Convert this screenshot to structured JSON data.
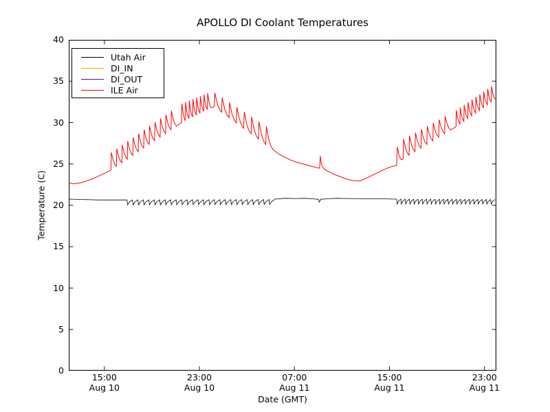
{
  "chart_data": {
    "type": "line",
    "title": "APOLLO DI Coolant Temperatures",
    "xlabel": "Date (GMT)",
    "ylabel": "Temperature (C)",
    "xlim_hours": [
      0,
      36
    ],
    "ylim": [
      0,
      40
    ],
    "grid": false,
    "yticks": [
      0,
      5,
      10,
      15,
      20,
      25,
      30,
      35,
      40
    ],
    "xticks": [
      {
        "hour": 3,
        "time": "15:00",
        "date": "Aug 10"
      },
      {
        "hour": 11,
        "time": "23:00",
        "date": "Aug 10"
      },
      {
        "hour": 19,
        "time": "07:00",
        "date": "Aug 11"
      },
      {
        "hour": 27,
        "time": "15:00",
        "date": "Aug 11"
      },
      {
        "hour": 35,
        "time": "23:00",
        "date": "Aug 11"
      }
    ],
    "legend": {
      "position": "upper-left",
      "entries": [
        {
          "label": "Utah Air",
          "color": "#000000"
        },
        {
          "label": "DI_IN",
          "color": "#ffa500"
        },
        {
          "label": "DI_OUT",
          "color": "#800080"
        },
        {
          "label": "ILE Air",
          "color": "#ff0000"
        }
      ]
    },
    "series": [
      {
        "name": "Utah Air",
        "color": "#000000",
        "linewidth": 0.8,
        "segments": [
          {
            "type": "line",
            "points": [
              [
                0,
                20.75
              ],
              [
                1.2,
                20.7
              ],
              [
                2.5,
                20.65
              ],
              [
                4.85,
                20.65
              ]
            ]
          },
          {
            "type": "notch",
            "t0": 4.9,
            "t1": 17.35,
            "period": 0.46,
            "base0": 20.65,
            "base1": 20.7,
            "dip0": 20.05,
            "dip1": 20.1
          },
          {
            "type": "line",
            "points": [
              [
                17.35,
                20.75
              ],
              [
                18.2,
                20.85
              ],
              [
                19.0,
                20.82
              ],
              [
                19.9,
                20.85
              ],
              [
                20.6,
                20.78
              ],
              [
                21.0,
                20.72
              ],
              [
                21.1,
                20.4
              ],
              [
                21.22,
                20.72
              ],
              [
                21.8,
                20.8
              ],
              [
                22.6,
                20.85
              ],
              [
                23.6,
                20.82
              ],
              [
                24.6,
                20.8
              ],
              [
                25.6,
                20.8
              ],
              [
                26.6,
                20.78
              ],
              [
                27.55,
                20.75
              ]
            ]
          },
          {
            "type": "notch",
            "t0": 27.6,
            "t1": 36.0,
            "period": 0.36,
            "base0": 20.75,
            "base1": 20.7,
            "dip0": 20.15,
            "dip1": 20.15
          }
        ]
      },
      {
        "name": "DI_IN",
        "color": "#ffa500",
        "linewidth": 1.0,
        "segments": []
      },
      {
        "name": "DI_OUT",
        "color": "#800080",
        "linewidth": 1.0,
        "segments": []
      },
      {
        "name": "ILE Air",
        "color": "#ff0000",
        "linewidth": 1.0,
        "segments": [
          {
            "type": "line",
            "points": [
              [
                0,
                22.7
              ],
              [
                0.45,
                22.6
              ],
              [
                1.1,
                22.75
              ],
              [
                2.0,
                23.2
              ],
              [
                3.0,
                23.85
              ],
              [
                3.5,
                24.2
              ]
            ]
          },
          {
            "type": "sawtooth",
            "t0": 3.55,
            "t1": 9.5,
            "period": 0.46,
            "base0": 24.25,
            "base1": 30.0,
            "peak0": 26.4,
            "peak1": 32.3
          },
          {
            "type": "sawtooth",
            "t0": 9.5,
            "t1": 12.25,
            "period": 0.31,
            "base0": 30.0,
            "base1": 32.0,
            "peak0": 32.3,
            "peak1": 33.9
          },
          {
            "type": "sawtooth",
            "t0": 12.25,
            "t1": 17.8,
            "period": 0.62,
            "base0": 31.9,
            "base1": 26.1,
            "peak0": 33.6,
            "peak1": 28.4
          },
          {
            "type": "line",
            "points": [
              [
                17.8,
                26.1
              ],
              [
                18.2,
                25.8
              ],
              [
                18.7,
                25.45
              ],
              [
                19.3,
                25.15
              ],
              [
                20.0,
                24.9
              ],
              [
                20.6,
                24.65
              ],
              [
                21.05,
                24.5
              ]
            ]
          },
          {
            "type": "line",
            "points": [
              [
                21.12,
                24.5
              ],
              [
                21.18,
                25.95
              ],
              [
                21.26,
                25.1
              ],
              [
                21.38,
                24.6
              ],
              [
                21.55,
                24.35
              ]
            ]
          },
          {
            "type": "line",
            "points": [
              [
                21.9,
                24.05
              ],
              [
                22.4,
                23.7
              ],
              [
                22.9,
                23.45
              ],
              [
                23.4,
                23.15
              ],
              [
                23.9,
                23.0
              ],
              [
                24.5,
                22.95
              ],
              [
                25.1,
                23.3
              ],
              [
                25.8,
                23.8
              ],
              [
                26.5,
                24.3
              ],
              [
                27.1,
                24.65
              ],
              [
                27.55,
                24.8
              ]
            ]
          },
          {
            "type": "line",
            "points": [
              [
                27.6,
                24.8
              ],
              [
                27.66,
                27.05
              ],
              [
                27.82,
                25.9
              ],
              [
                28.0,
                25.5
              ],
              [
                28.12,
                25.55
              ]
            ]
          },
          {
            "type": "sawtooth",
            "t0": 28.15,
            "t1": 32.6,
            "period": 0.5,
            "base0": 25.6,
            "base1": 29.5,
            "peak0": 28.0,
            "peak1": 31.5
          },
          {
            "type": "sawtooth",
            "t0": 32.6,
            "t1": 36.0,
            "period": 0.33,
            "base0": 29.5,
            "base1": 32.9,
            "peak0": 31.5,
            "peak1": 34.8
          }
        ]
      }
    ]
  }
}
